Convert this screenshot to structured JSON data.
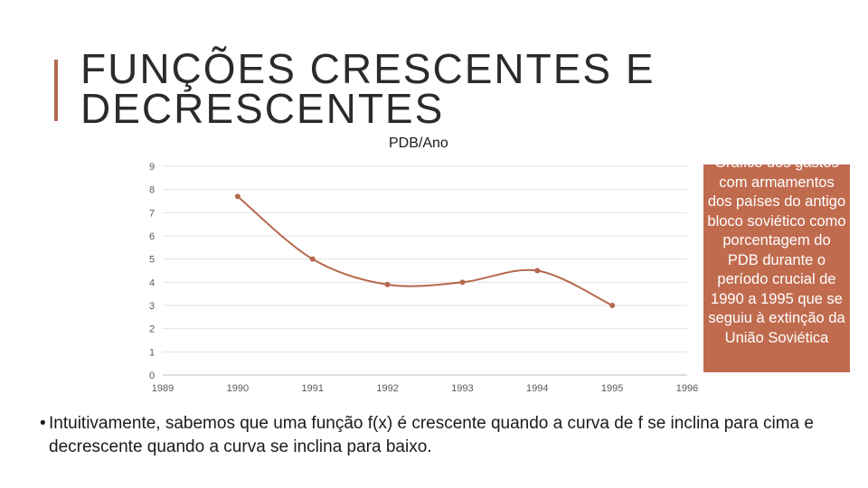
{
  "slide": {
    "title_line1": "FUNÇÕES CRESCENTES E",
    "title_line2": "DECRESCENTES",
    "note": "Gráfico dos gastos com armamentos dos países do antigo bloco soviético como porcentagem do PDB durante o período crucial de 1990 a 1995 que se seguiu à extinção da União Soviética",
    "bullet_symbol": "•",
    "bullet_text": "Intuitivamente, sabemos que uma função f(x) é crescente quando a curva de f se inclina para cima e decrescente quando a curva se inclina para baixo."
  },
  "colors": {
    "accent": "#b56a50",
    "line": "#b5694d",
    "note_box": "#c06b4e",
    "grid": "#e3e3e3"
  },
  "chart_data": {
    "type": "line",
    "title": "PDB/Ano",
    "xlabel": "",
    "ylabel": "",
    "x_ticks": [
      "1989",
      "1990",
      "1991",
      "1992",
      "1993",
      "1994",
      "1995",
      "1996"
    ],
    "y_ticks": [
      "0",
      "1",
      "2",
      "3",
      "4",
      "5",
      "6",
      "7",
      "8",
      "9"
    ],
    "xlim": [
      1989,
      1996
    ],
    "ylim": [
      0,
      9
    ],
    "grid": true,
    "smooth": true,
    "series": [
      {
        "x": [
          1990,
          1991,
          1992,
          1993,
          1994,
          1995
        ],
        "y": [
          7.7,
          5.0,
          3.9,
          4.0,
          4.5,
          3.0
        ]
      }
    ]
  }
}
